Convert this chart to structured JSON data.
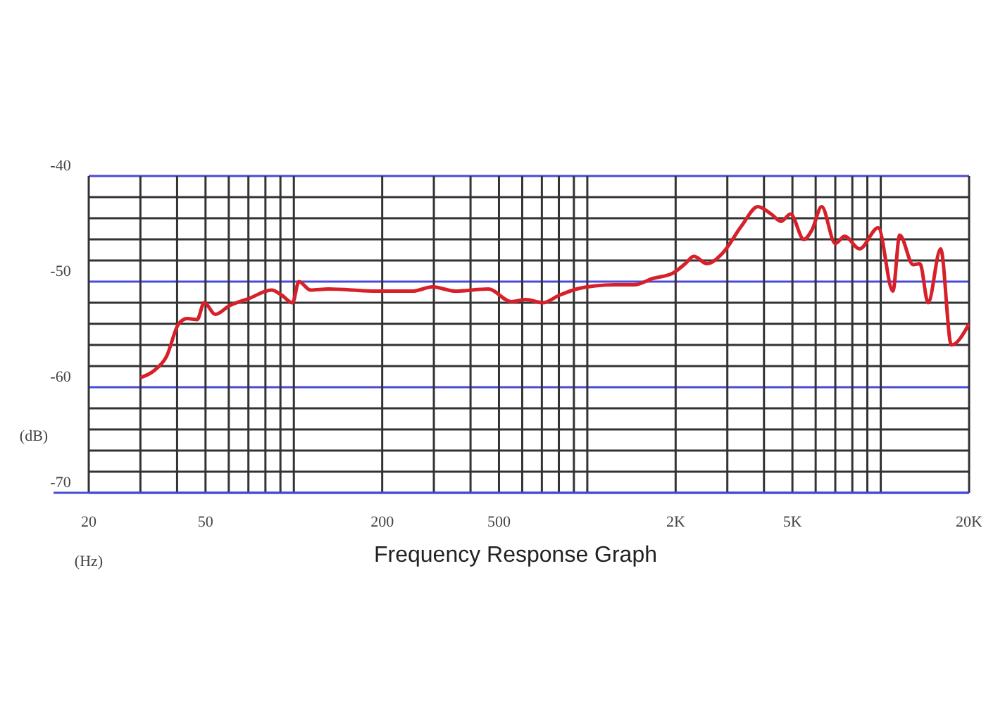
{
  "chart_data": {
    "type": "line",
    "title": "Frequency Response Graph",
    "xlabel": "(Hz)",
    "ylabel": "(dB)",
    "log": "x",
    "grid": true,
    "marker": "none",
    "line_style": "solid",
    "xlim": [
      20,
      20000
    ],
    "ylim": [
      -70,
      -40
    ],
    "xticks": [
      20,
      {
        "value": 30,
        "label": null
      },
      {
        "value": 40,
        "label": null
      },
      50,
      {
        "value": 60,
        "label": null
      },
      {
        "value": 70,
        "label": null
      },
      {
        "value": 80,
        "label": null
      },
      {
        "value": 90,
        "label": null
      },
      {
        "value": 100,
        "label": null
      },
      200,
      {
        "value": 300,
        "label": null
      },
      {
        "value": 400,
        "label": null
      },
      500,
      {
        "value": 600,
        "label": null
      },
      {
        "value": 700,
        "label": null
      },
      {
        "value": 800,
        "label": null
      },
      {
        "value": 900,
        "label": null
      },
      {
        "value": 1000,
        "label": null
      },
      {
        "value": 2000,
        "label": "2K"
      },
      {
        "value": 3000,
        "label": null
      },
      {
        "value": 4000,
        "label": null
      },
      {
        "value": 5000,
        "label": "5K"
      },
      {
        "value": 6000,
        "label": null
      },
      {
        "value": 7000,
        "label": null
      },
      {
        "value": 8000,
        "label": null
      },
      {
        "value": 9000,
        "label": null
      },
      {
        "value": 10000,
        "label": null
      },
      {
        "value": 20000,
        "label": "20K"
      }
    ],
    "yticks": [
      -70,
      {
        "value": -68,
        "label": null
      },
      {
        "value": -66,
        "label": null
      },
      {
        "value": -64,
        "label": null
      },
      {
        "value": -62,
        "label": null
      },
      -60,
      {
        "value": -58,
        "label": null
      },
      {
        "value": -56,
        "label": null
      },
      {
        "value": -54,
        "label": null
      },
      {
        "value": -52,
        "label": null
      },
      -50,
      {
        "value": -48,
        "label": null
      },
      {
        "value": -46,
        "label": null
      },
      {
        "value": -44,
        "label": null
      },
      {
        "value": -42,
        "label": null
      },
      -40
    ],
    "series": [
      {
        "color": "#d8202a",
        "x": [
          30,
          33.5,
          36.8,
          40.5,
          43.3,
          46.8,
          49.5,
          54,
          60.2,
          70.3,
          84,
          91,
          99,
          104,
          114,
          131,
          190,
          254,
          297,
          355,
          460,
          551,
          616,
          705,
          802,
          920,
          1066,
          1243,
          1443,
          1673,
          1957,
          2157,
          2306,
          2557,
          2892,
          3360,
          3812,
          4230,
          4575,
          4927,
          5470,
          5830,
          6290,
          7000,
          7530,
          8470,
          9800,
          11000,
          11600,
          12900,
          13600,
          14500,
          16000,
          17400,
          20000
        ],
        "values": [
          -59.1,
          -58.4,
          -57.1,
          -54,
          -53.5,
          -53.6,
          -52,
          -53.1,
          -52.3,
          -51.6,
          -50.8,
          -51.3,
          -52,
          -50,
          -50.8,
          -50.7,
          -50.9,
          -50.9,
          -50.5,
          -50.9,
          -50.7,
          -51.9,
          -51.7,
          -52,
          -51.3,
          -50.7,
          -50.4,
          -50.3,
          -50.3,
          -49.7,
          -49.2,
          -48.3,
          -47.6,
          -48.3,
          -47.3,
          -44.7,
          -42.9,
          -43.6,
          -44.3,
          -43.6,
          -46,
          -45.1,
          -42.9,
          -46.4,
          -45.7,
          -46.9,
          -44.9,
          -50.9,
          -45.6,
          -48.4,
          -48.3,
          -52,
          -46.9,
          -56,
          -54
        ]
      }
    ]
  }
}
